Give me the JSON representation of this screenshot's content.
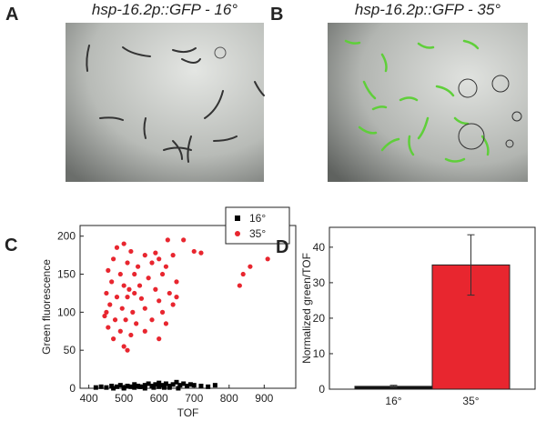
{
  "panels": [
    {
      "label": "A",
      "title": "hsp-16.2p::GFP - 16°"
    },
    {
      "label": "B",
      "title": "hsp-16.2p::GFP - 35°"
    }
  ],
  "chart_data": [
    {
      "panel_label": "C",
      "type": "scatter",
      "xlabel": "TOF",
      "ylabel": "Green fluorescence",
      "xlim": [
        375,
        990
      ],
      "ylim": [
        0,
        214
      ],
      "xticks": [
        400,
        500,
        600,
        700,
        800,
        900
      ],
      "yticks": [
        0,
        50,
        100,
        150,
        200
      ],
      "legend": "upper right",
      "series": [
        {
          "name": "16°",
          "color": "#000000",
          "marker": "square",
          "x": [
            420,
            435,
            450,
            465,
            480,
            490,
            500,
            510,
            520,
            530,
            540,
            550,
            560,
            570,
            580,
            590,
            600,
            610,
            620,
            630,
            640,
            650,
            660,
            670,
            680,
            690,
            700,
            720,
            740,
            760,
            500,
            530,
            560,
            600,
            630,
            470,
            545,
            615,
            655,
            585
          ],
          "y": [
            1,
            2,
            1,
            3,
            2,
            4,
            1,
            3,
            2,
            5,
            3,
            2,
            4,
            6,
            3,
            5,
            7,
            4,
            6,
            3,
            5,
            8,
            4,
            6,
            3,
            5,
            4,
            3,
            2,
            4,
            0,
            1,
            0,
            2,
            1,
            0,
            2,
            1,
            0,
            1
          ]
        },
        {
          "name": "35°",
          "color": "#e8262f",
          "marker": "circle",
          "x": [
            500,
            480,
            520,
            560,
            600,
            640,
            470,
            510,
            540,
            580,
            620,
            455,
            490,
            530,
            570,
            610,
            650,
            465,
            500,
            515,
            545,
            590,
            630,
            450,
            480,
            510,
            550,
            600,
            640,
            460,
            495,
            525,
            560,
            610,
            445,
            475,
            505,
            535,
            580,
            620,
            455,
            490,
            520,
            560,
            600,
            470,
            500,
            510,
            450,
            530,
            700,
            720,
            670,
            830,
            840,
            860,
            910,
            625,
            590,
            650
          ],
          "y": [
            190,
            185,
            180,
            175,
            170,
            175,
            170,
            165,
            160,
            165,
            160,
            155,
            150,
            150,
            145,
            150,
            140,
            140,
            135,
            130,
            135,
            130,
            125,
            125,
            120,
            120,
            118,
            115,
            110,
            110,
            105,
            100,
            105,
            100,
            95,
            90,
            90,
            85,
            90,
            85,
            80,
            75,
            70,
            75,
            65,
            65,
            55,
            50,
            100,
            125,
            180,
            178,
            195,
            135,
            150,
            160,
            170,
            195,
            178,
            120
          ]
        }
      ]
    },
    {
      "panel_label": "D",
      "type": "bar",
      "ylabel": "Normalized green/TOF",
      "categories": [
        "16°",
        "35°"
      ],
      "values": [
        0.8,
        35
      ],
      "errors": [
        0.3,
        8.5
      ],
      "colors": [
        "#111111",
        "#e8262f"
      ],
      "ylim": [
        0,
        45.6
      ],
      "yticks": [
        0,
        10,
        20,
        30,
        40
      ]
    }
  ]
}
